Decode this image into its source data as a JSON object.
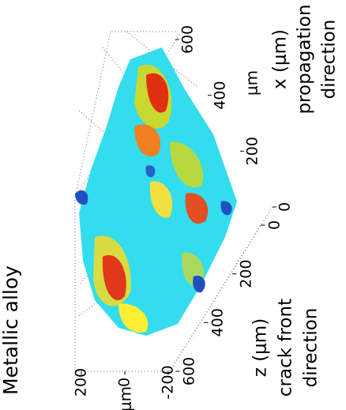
{
  "chart_data": {
    "type": "surface",
    "title": "Metallic alloy",
    "xlabel": [
      "x (μm)",
      "propagation",
      "direction"
    ],
    "xunit": "μm",
    "xlim": [
      0,
      600
    ],
    "xticks": [
      0,
      200,
      400,
      600
    ],
    "zlabel": [
      "z (μm)",
      "crack front",
      "direction"
    ],
    "zlim": [
      0,
      600
    ],
    "zticks": [
      0,
      200,
      400,
      600
    ],
    "ylabel": "μm",
    "ylim": [
      -200,
      200
    ],
    "yticks": [
      -200,
      0,
      200
    ]
  }
}
